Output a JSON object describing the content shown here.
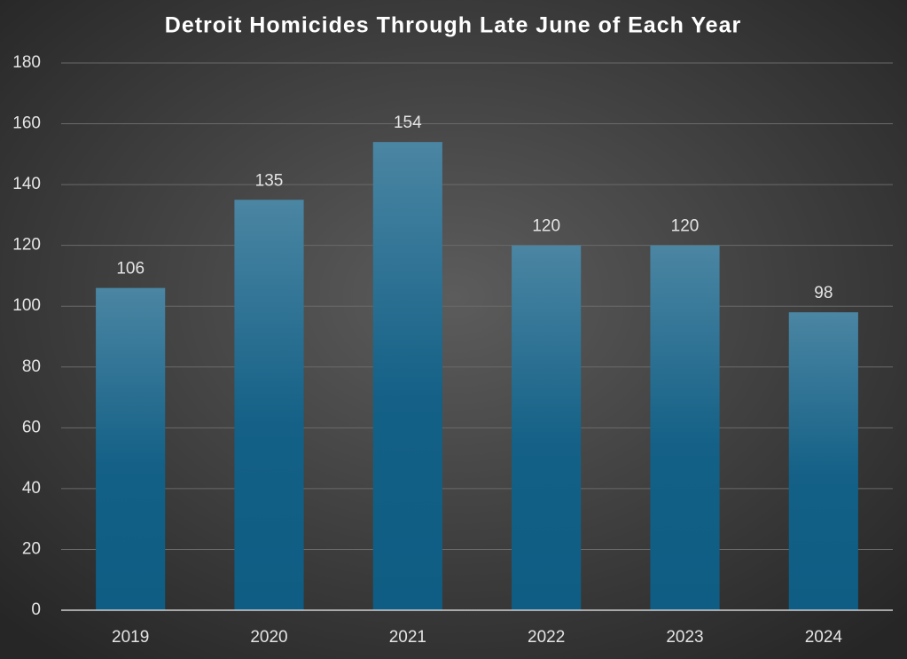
{
  "chart_data": {
    "type": "bar",
    "title": "Detroit Homicides Through Late June of Each Year",
    "categories": [
      "2019",
      "2020",
      "2021",
      "2022",
      "2023",
      "2024"
    ],
    "values": [
      106,
      135,
      154,
      120,
      120,
      98
    ],
    "color": "#0f5d84",
    "ylim": [
      0,
      180
    ],
    "yticks": [
      0,
      20,
      40,
      60,
      80,
      100,
      120,
      140,
      160,
      180
    ],
    "grid": true
  }
}
